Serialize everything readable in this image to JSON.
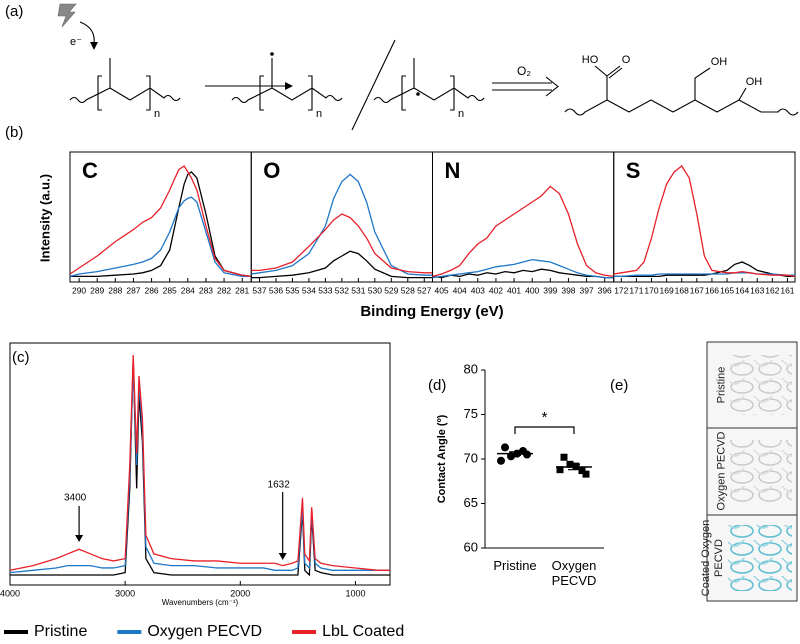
{
  "panel_labels": [
    "(a)",
    "(b)",
    "(c)",
    "(d)",
    "(e)"
  ],
  "scheme": {
    "electron": "e⁻",
    "n": [
      "n",
      "n",
      "n"
    ],
    "reagent": "O₂",
    "groups": [
      "HO",
      "O",
      "OH",
      "OH"
    ]
  },
  "panel_b": {
    "ylabel": "Intensity (a.u.)",
    "xlabel": "Binding Energy (eV)"
  },
  "chart_data": [
    {
      "type": "line",
      "title": "C",
      "xlim": [
        290.5,
        280.5
      ],
      "xticks": [
        290,
        289,
        288,
        287,
        286,
        285,
        284,
        283,
        282,
        281
      ],
      "ylim": [
        0,
        100
      ],
      "x": [
        290.5,
        290,
        289,
        288,
        287,
        286.5,
        286,
        285.5,
        285,
        284.5,
        284.2,
        284,
        283.8,
        283.5,
        283,
        282.5,
        282,
        281,
        280.5
      ],
      "series": [
        {
          "color": "#000000",
          "values": [
            3,
            3,
            3,
            4,
            5,
            6,
            8,
            12,
            25,
            60,
            80,
            88,
            90,
            85,
            55,
            20,
            8,
            4,
            3
          ]
        },
        {
          "color": "#1f77c8",
          "values": [
            3,
            5,
            7,
            10,
            13,
            15,
            18,
            25,
            40,
            60,
            66,
            68,
            69,
            65,
            40,
            15,
            6,
            3,
            3
          ]
        },
        {
          "color": "#e8202a",
          "values": [
            5,
            10,
            20,
            32,
            42,
            48,
            52,
            60,
            75,
            92,
            95,
            90,
            85,
            75,
            45,
            18,
            8,
            4,
            3
          ]
        }
      ]
    },
    {
      "type": "line",
      "title": "O",
      "xlim": [
        537.5,
        526.5
      ],
      "xticks": [
        537,
        536,
        535,
        534,
        533,
        532,
        531,
        530,
        529,
        528,
        527
      ],
      "ylim": [
        0,
        100
      ],
      "x": [
        537.5,
        537,
        536,
        535,
        534,
        533,
        532.5,
        532,
        531.5,
        531,
        530.5,
        530,
        529,
        528,
        527,
        526.5
      ],
      "series": [
        {
          "color": "#000000",
          "values": [
            2,
            2,
            3,
            4,
            6,
            10,
            16,
            20,
            24,
            22,
            16,
            9,
            3,
            2,
            2,
            2
          ]
        },
        {
          "color": "#1f77c8",
          "values": [
            5,
            6,
            8,
            12,
            22,
            45,
            68,
            82,
            88,
            82,
            65,
            40,
            12,
            5,
            4,
            4
          ]
        },
        {
          "color": "#e8202a",
          "values": [
            8,
            8,
            10,
            15,
            28,
            42,
            50,
            55,
            52,
            45,
            35,
            22,
            10,
            7,
            6,
            6
          ]
        }
      ]
    },
    {
      "type": "line",
      "title": "N",
      "xlim": [
        405.5,
        395.5
      ],
      "xticks": [
        405,
        404,
        403,
        402,
        401,
        400,
        399,
        398,
        397,
        396
      ],
      "ylim": [
        0,
        100
      ],
      "x": [
        405.5,
        405,
        404.5,
        404,
        403.5,
        403,
        402.5,
        402,
        401.5,
        401,
        400.5,
        400,
        399.5,
        399,
        398.5,
        398,
        397.5,
        397,
        396.5,
        396,
        395.5
      ],
      "series": [
        {
          "color": "#000000",
          "values": [
            3,
            2,
            4,
            3,
            5,
            4,
            6,
            5,
            7,
            6,
            8,
            7,
            9,
            8,
            6,
            5,
            4,
            3,
            3,
            2,
            2
          ]
        },
        {
          "color": "#1f77c8",
          "values": [
            2,
            3,
            4,
            5,
            6,
            7,
            9,
            11,
            12,
            13,
            15,
            17,
            16,
            15,
            12,
            9,
            6,
            4,
            3,
            2,
            2
          ]
        },
        {
          "color": "#e8202a",
          "values": [
            3,
            5,
            8,
            12,
            22,
            30,
            35,
            45,
            50,
            55,
            60,
            65,
            70,
            78,
            72,
            55,
            30,
            12,
            6,
            4,
            3
          ]
        }
      ]
    },
    {
      "type": "line",
      "title": "S",
      "xlim": [
        172.5,
        160.5
      ],
      "xticks": [
        172,
        171,
        170,
        169,
        168,
        167,
        166,
        165,
        164,
        163,
        162,
        161
      ],
      "ylim": [
        0,
        100
      ],
      "x": [
        172.5,
        172,
        171,
        170.5,
        170,
        169.5,
        169,
        168.5,
        168,
        167.5,
        167,
        166.5,
        166,
        165,
        164.5,
        164,
        163.5,
        163,
        162,
        161,
        160.5
      ],
      "series": [
        {
          "color": "#000000",
          "values": [
            3,
            3,
            3,
            3,
            3,
            3,
            4,
            4,
            4,
            4,
            4,
            4,
            5,
            8,
            13,
            15,
            12,
            8,
            5,
            3,
            3
          ]
        },
        {
          "color": "#1f77c8",
          "values": [
            3,
            3,
            4,
            4,
            4,
            5,
            5,
            5,
            5,
            5,
            5,
            5,
            5,
            5,
            6,
            6,
            6,
            5,
            5,
            4,
            4
          ]
        },
        {
          "color": "#e8202a",
          "values": [
            5,
            6,
            8,
            15,
            35,
            60,
            80,
            90,
            95,
            85,
            55,
            20,
            8,
            6,
            6,
            7,
            6,
            5,
            4,
            4,
            3
          ]
        }
      ]
    },
    {
      "type": "line",
      "xlabel": "Wavenumbers (cm⁻¹)",
      "xlim": [
        4000,
        700
      ],
      "xticks": [
        4000,
        3000,
        2000,
        1000
      ],
      "ylim": [
        0,
        100
      ],
      "annotations": [
        3400,
        1632
      ],
      "x": [
        4000,
        3800,
        3600,
        3500,
        3400,
        3300,
        3200,
        3100,
        3000,
        2960,
        2930,
        2900,
        2880,
        2850,
        2820,
        2750,
        2600,
        2400,
        2200,
        2000,
        1800,
        1700,
        1632,
        1550,
        1500,
        1460,
        1440,
        1400,
        1380,
        1350,
        1300,
        1200,
        1000,
        800,
        700
      ],
      "series": [
        {
          "name": "Pristine",
          "color": "#000000",
          "values": [
            3,
            3,
            3,
            3,
            3,
            3,
            3,
            3,
            4,
            40,
            95,
            40,
            80,
            60,
            10,
            4,
            3,
            3,
            3,
            3,
            3,
            3,
            3,
            3,
            3,
            30,
            5,
            3,
            28,
            5,
            4,
            3,
            3,
            3,
            3
          ]
        },
        {
          "name": "Oxygen PECVD",
          "color": "#1f77c8",
          "values": [
            4,
            5,
            6,
            7,
            7,
            7,
            6,
            6,
            7,
            45,
            92,
            50,
            85,
            65,
            15,
            8,
            7,
            7,
            6,
            6,
            6,
            5,
            5,
            5,
            6,
            32,
            8,
            6,
            30,
            8,
            6,
            5,
            5,
            5,
            5
          ]
        },
        {
          "name": "LbL Coated",
          "color": "#e8202a",
          "values": [
            5,
            7,
            10,
            12,
            14,
            12,
            10,
            9,
            10,
            50,
            97,
            55,
            88,
            70,
            20,
            12,
            10,
            9,
            9,
            8,
            8,
            8,
            7,
            8,
            9,
            36,
            12,
            9,
            32,
            10,
            8,
            7,
            6,
            5,
            5
          ]
        }
      ]
    },
    {
      "type": "dot",
      "ylabel": "Contact Angle (º)",
      "categories": [
        "Pristine",
        "Oxygen PECVD"
      ],
      "ylim": [
        60,
        80
      ],
      "yticks": [
        60,
        65,
        70,
        75,
        80
      ],
      "markers": [
        "circle",
        "square"
      ],
      "color": "#000000",
      "points": [
        [
          71.3,
          70.3,
          70.9,
          70.6,
          70.5,
          69.8
        ],
        [
          70.2,
          69.4,
          68.7,
          69.2,
          68.3,
          68.8
        ]
      ],
      "means": [
        70.6,
        69.1
      ],
      "errors": [
        0.2,
        0.3
      ],
      "significance": "*"
    }
  ],
  "photos": {
    "labels": [
      "Pristine",
      "Oxygen PECVD",
      "Coated Oxygen PECVD"
    ]
  }
}
